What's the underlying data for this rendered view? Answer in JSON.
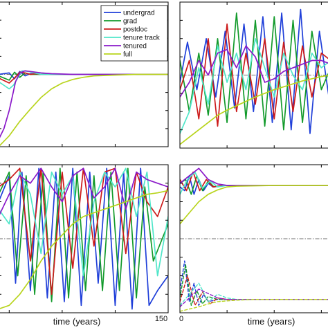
{
  "legend": {
    "items": [
      {
        "label": "undergrad",
        "color": "#1f3fd9"
      },
      {
        "label": "grad",
        "color": "#129a2b"
      },
      {
        "label": "postdoc",
        "color": "#cc1a1a"
      },
      {
        "label": "tenure track",
        "color": "#4fe6c9"
      },
      {
        "label": "tenured",
        "color": "#8a18c9"
      },
      {
        "label": "full",
        "color": "#b8d41c"
      }
    ]
  },
  "chart_data": [
    {
      "type": "line",
      "panel": "top-left",
      "xlabel": "",
      "xlim": [
        -10,
        150
      ],
      "ylim": [
        -1,
        1
      ],
      "ref_line": 0,
      "legend_position": "top-right",
      "series": [
        {
          "name": "undergrad",
          "x": [
            -10,
            0,
            5,
            10,
            15,
            20,
            30,
            40,
            60,
            100,
            150
          ],
          "y": [
            0,
            0.02,
            -0.06,
            0.04,
            -0.02,
            0.01,
            0,
            0,
            0,
            0,
            0
          ]
        },
        {
          "name": "grad",
          "x": [
            -10,
            0,
            5,
            10,
            15,
            20,
            30,
            40,
            60,
            100,
            150
          ],
          "y": [
            -0.02,
            -0.08,
            0.03,
            -0.04,
            0.02,
            0,
            0,
            0,
            0,
            0,
            0
          ]
        },
        {
          "name": "postdoc",
          "x": [
            -10,
            0,
            5,
            10,
            15,
            20,
            25,
            30,
            40,
            60,
            100,
            150
          ],
          "y": [
            -0.05,
            -0.12,
            -0.05,
            0.03,
            0.02,
            0,
            0.01,
            0,
            0,
            0,
            0,
            0
          ]
        },
        {
          "name": "tenure track",
          "x": [
            -10,
            0,
            4,
            8,
            12,
            18,
            24,
            30,
            40,
            60,
            100,
            150
          ],
          "y": [
            -0.1,
            -0.2,
            -0.15,
            -0.05,
            0.05,
            0.04,
            0.02,
            0,
            0,
            0,
            0,
            0
          ]
        },
        {
          "name": "tenured",
          "x": [
            -10,
            -5,
            0,
            3,
            6,
            10,
            15,
            20,
            30,
            40,
            60,
            100,
            150
          ],
          "y": [
            -0.9,
            -0.75,
            -0.5,
            -0.3,
            -0.1,
            0.02,
            0.05,
            0.04,
            0.02,
            0.01,
            0,
            0,
            0
          ]
        },
        {
          "name": "full",
          "x": [
            -10,
            0,
            10,
            20,
            30,
            40,
            50,
            60,
            70,
            80,
            100,
            120,
            150
          ],
          "y": [
            -1,
            -0.85,
            -0.65,
            -0.48,
            -0.32,
            -0.2,
            -0.12,
            -0.07,
            -0.04,
            -0.02,
            -0.01,
            0,
            0
          ]
        }
      ]
    },
    {
      "type": "line",
      "panel": "top-right",
      "xlabel": "",
      "xlim": [
        0,
        160
      ],
      "ylim": [
        -1,
        1
      ],
      "ref_line": 0,
      "series": [
        {
          "name": "undergrad",
          "x": [
            0,
            8,
            18,
            28,
            38,
            48,
            58,
            68,
            78,
            88,
            98,
            108,
            118,
            128,
            138,
            148,
            158,
            160
          ],
          "y": [
            -0.1,
            0.45,
            -0.2,
            0.5,
            -0.3,
            0.6,
            -0.45,
            0.7,
            -0.5,
            0.8,
            -0.65,
            0.85,
            -0.75,
            0.9,
            -0.8,
            0.6,
            -0.3,
            -0.2
          ]
        },
        {
          "name": "grad",
          "x": [
            0,
            10,
            20,
            30,
            40,
            50,
            60,
            70,
            80,
            90,
            100,
            110,
            120,
            130,
            140,
            150,
            160
          ],
          "y": [
            0.2,
            -0.5,
            0.3,
            -0.55,
            0.5,
            -0.65,
            0.85,
            -0.6,
            0.75,
            -0.7,
            0.8,
            -0.75,
            0.75,
            -0.65,
            0.6,
            -0.2,
            0.1
          ]
        },
        {
          "name": "postdoc",
          "x": [
            0,
            10,
            20,
            30,
            40,
            50,
            60,
            70,
            80,
            90,
            100,
            110,
            120,
            130,
            140,
            150,
            160
          ],
          "y": [
            -0.2,
            0.2,
            -0.6,
            0.5,
            -0.7,
            0.7,
            -0.5,
            0.3,
            -0.4,
            0.5,
            -0.6,
            0.45,
            -0.5,
            0.4,
            -0.3,
            0.3,
            0.2
          ]
        },
        {
          "name": "tenure track",
          "x": [
            0,
            10,
            20,
            30,
            40,
            50,
            60,
            70,
            80,
            90,
            100,
            110,
            120,
            130,
            140,
            150,
            160
          ],
          "y": [
            -0.8,
            -0.5,
            0.1,
            -0.4,
            0.4,
            -0.1,
            0.3,
            -0.2,
            0.5,
            0.1,
            -0.3,
            0.3,
            0,
            -0.2,
            0.3,
            0.1,
            0.2
          ]
        },
        {
          "name": "tenured",
          "x": [
            0,
            10,
            20,
            30,
            40,
            50,
            60,
            70,
            80,
            90,
            100,
            110,
            120,
            130,
            140,
            150,
            160
          ],
          "y": [
            -0.3,
            -0.1,
            0.2,
            0,
            0.3,
            0.35,
            0.1,
            0.4,
            0.25,
            -0.1,
            -0.05,
            0.05,
            0.1,
            0.15,
            0.2,
            0.2,
            0.15
          ]
        },
        {
          "name": "full",
          "x": [
            0,
            10,
            20,
            30,
            40,
            50,
            60,
            70,
            80,
            90,
            100,
            110,
            120,
            130,
            140,
            150,
            160
          ],
          "y": [
            -0.95,
            -0.85,
            -0.75,
            -0.65,
            -0.55,
            -0.48,
            -0.42,
            -0.36,
            -0.3,
            -0.25,
            -0.2,
            -0.16,
            -0.12,
            -0.08,
            -0.05,
            -0.02,
            0
          ]
        }
      ]
    },
    {
      "type": "line",
      "panel": "bottom-left",
      "xlabel": "time (years)",
      "xticks": [
        150
      ],
      "xlim": [
        -10,
        150
      ],
      "ylim": [
        -1,
        1
      ],
      "ref_line": 0,
      "series": [
        {
          "name": "undergrad",
          "x": [
            -10,
            0,
            6,
            12,
            20,
            28,
            36,
            44,
            52,
            60,
            68,
            76,
            84,
            92,
            100,
            108,
            116,
            124,
            132,
            140,
            150
          ],
          "y": [
            0.5,
            0.85,
            -0.6,
            0.9,
            -0.7,
            0.95,
            -0.8,
            0.9,
            -0.85,
            0.95,
            -0.9,
            0.9,
            -0.6,
            0.95,
            -0.9,
            0.9,
            -0.95,
            0.95,
            -0.9,
            -0.7,
            -0.5
          ]
        },
        {
          "name": "grad",
          "x": [
            -10,
            0,
            8,
            16,
            24,
            32,
            40,
            48,
            56,
            64,
            72,
            80,
            88,
            96,
            104,
            112,
            120,
            128,
            136,
            150
          ],
          "y": [
            0.6,
            0.9,
            -0.5,
            0.85,
            -0.75,
            0.9,
            -0.85,
            0.95,
            -0.8,
            0.9,
            -0.7,
            0.85,
            -0.7,
            0.9,
            -0.7,
            0.95,
            -0.8,
            0.7,
            -0.3,
            0.2
          ]
        },
        {
          "name": "postdoc",
          "x": [
            -10,
            0,
            10,
            20,
            30,
            40,
            50,
            60,
            70,
            80,
            90,
            100,
            110,
            120,
            130,
            140,
            150
          ],
          "y": [
            0.7,
            0.8,
            0.95,
            -0.3,
            0.95,
            -0.75,
            0.9,
            -0.4,
            0.95,
            -0.1,
            0.9,
            0.95,
            -0.2,
            0.9,
            0.5,
            0.3,
            0.7
          ]
        },
        {
          "name": "tenure track",
          "x": [
            -10,
            0,
            10,
            20,
            30,
            40,
            50,
            60,
            70,
            80,
            90,
            100,
            110,
            120,
            130,
            140,
            150
          ],
          "y": [
            0.4,
            0.2,
            0.9,
            0.6,
            -0.2,
            0.9,
            0.6,
            0.85,
            -0.5,
            0.5,
            0.9,
            0.7,
            0.95,
            0.3,
            0.9,
            -0.5,
            0.3
          ]
        },
        {
          "name": "tenured",
          "x": [
            -10,
            0,
            10,
            20,
            30,
            40,
            50,
            60,
            70,
            80,
            90,
            100,
            110,
            120,
            130,
            140,
            150
          ],
          "y": [
            0.3,
            0.6,
            0.85,
            0.75,
            0.95,
            0.7,
            0.5,
            0.85,
            0.95,
            0.55,
            0.7,
            0.95,
            0.4,
            0.9,
            0.8,
            0.75,
            0.7
          ]
        },
        {
          "name": "full",
          "x": [
            -10,
            0,
            10,
            20,
            30,
            40,
            50,
            60,
            70,
            80,
            90,
            100,
            110,
            120,
            130,
            140,
            150
          ],
          "y": [
            -0.95,
            -0.9,
            -0.75,
            -0.55,
            -0.3,
            -0.1,
            0.05,
            0.2,
            0.3,
            0.35,
            0.4,
            0.45,
            0.5,
            0.55,
            0.6,
            0.62,
            0.65
          ]
        }
      ]
    },
    {
      "type": "line",
      "panel": "bottom-right",
      "xlabel": "time (years)",
      "xticks": [
        0
      ],
      "xlim": [
        0,
        160
      ],
      "ylim": [
        -1,
        1
      ],
      "ref_line": 0,
      "series": [
        {
          "name": "undergrad",
          "x": [
            0,
            5,
            10,
            15,
            20,
            25,
            30,
            35,
            45,
            60,
            100,
            160
          ],
          "y": [
            0.7,
            0.65,
            0.85,
            0.6,
            0.8,
            0.65,
            0.75,
            0.7,
            0.72,
            0.72,
            0.72,
            0.72
          ]
        },
        {
          "name": "grad",
          "x": [
            0,
            6,
            12,
            18,
            24,
            30,
            36,
            45,
            60,
            100,
            160
          ],
          "y": [
            0.75,
            0.8,
            0.6,
            0.85,
            0.65,
            0.78,
            0.7,
            0.72,
            0.72,
            0.72,
            0.72
          ]
        },
        {
          "name": "postdoc",
          "x": [
            0,
            7,
            14,
            21,
            28,
            35,
            45,
            60,
            100,
            160
          ],
          "y": [
            0.8,
            0.65,
            0.9,
            0.65,
            0.8,
            0.7,
            0.72,
            0.72,
            0.72,
            0.72
          ]
        },
        {
          "name": "tenure track",
          "x": [
            0,
            8,
            16,
            24,
            32,
            40,
            50,
            60,
            100,
            160
          ],
          "y": [
            0.6,
            0.8,
            0.9,
            0.68,
            0.78,
            0.7,
            0.72,
            0.72,
            0.72,
            0.72
          ]
        },
        {
          "name": "tenured",
          "x": [
            0,
            10,
            20,
            30,
            40,
            50,
            60,
            100,
            160
          ],
          "y": [
            0.75,
            0.85,
            0.95,
            0.8,
            0.74,
            0.72,
            0.72,
            0.72,
            0.72
          ]
        },
        {
          "name": "full",
          "x": [
            0,
            10,
            20,
            30,
            40,
            50,
            60,
            100,
            160
          ],
          "y": [
            0.2,
            0.35,
            0.5,
            0.6,
            0.66,
            0.7,
            0.71,
            0.72,
            0.72
          ]
        },
        {
          "name": "undergrad",
          "style": "dashed",
          "x": [
            0,
            5,
            10,
            15,
            20,
            25,
            30,
            40,
            60,
            100,
            160
          ],
          "y": [
            -0.7,
            -0.3,
            -0.85,
            -0.6,
            -0.9,
            -0.75,
            -0.85,
            -0.82,
            -0.82,
            -0.82,
            -0.82
          ]
        },
        {
          "name": "grad",
          "style": "dashed",
          "x": [
            0,
            6,
            12,
            18,
            24,
            30,
            40,
            60,
            100,
            160
          ],
          "y": [
            -0.8,
            -0.35,
            -0.9,
            -0.7,
            -0.88,
            -0.78,
            -0.82,
            -0.82,
            -0.82,
            -0.82
          ]
        },
        {
          "name": "postdoc",
          "style": "dashed",
          "x": [
            0,
            8,
            16,
            24,
            32,
            40,
            50,
            60,
            100,
            160
          ],
          "y": [
            -0.85,
            -0.5,
            -0.9,
            -0.72,
            -0.88,
            -0.8,
            -0.82,
            -0.82,
            -0.82,
            -0.82
          ]
        },
        {
          "name": "tenure track",
          "style": "dashed",
          "x": [
            0,
            10,
            20,
            30,
            40,
            50,
            60,
            80,
            100,
            160
          ],
          "y": [
            -0.9,
            -0.75,
            -0.6,
            -0.85,
            -0.75,
            -0.8,
            -0.82,
            -0.82,
            -0.82,
            -0.82
          ]
        },
        {
          "name": "tenured",
          "style": "dashed",
          "x": [
            0,
            10,
            20,
            30,
            40,
            50,
            60,
            80,
            100,
            160
          ],
          "y": [
            -0.92,
            -0.8,
            -0.68,
            -0.74,
            -0.8,
            -0.82,
            -0.82,
            -0.82,
            -0.82,
            -0.82
          ]
        },
        {
          "name": "full",
          "style": "dashed",
          "x": [
            0,
            10,
            20,
            30,
            40,
            60,
            80,
            100,
            160
          ],
          "y": [
            -0.98,
            -0.95,
            -0.92,
            -0.88,
            -0.85,
            -0.83,
            -0.82,
            -0.82,
            -0.82
          ]
        }
      ]
    }
  ]
}
